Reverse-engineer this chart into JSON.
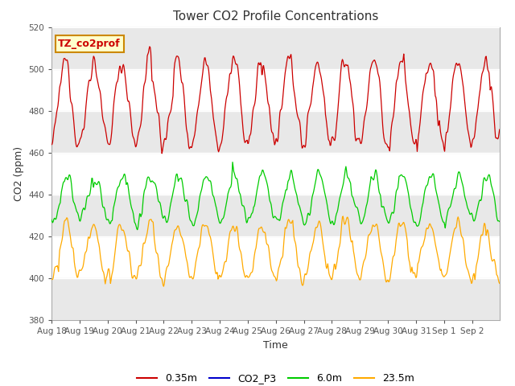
{
  "title": "Tower CO2 Profile Concentrations",
  "xlabel": "Time",
  "ylabel": "CO2 (ppm)",
  "ylim": [
    380,
    520
  ],
  "yticks": [
    380,
    400,
    420,
    440,
    460,
    480,
    500,
    520
  ],
  "annotation_text": "TZ_co2prof",
  "annotation_bg": "#ffffcc",
  "annotation_border": "#cc8800",
  "bg_color": "#ffffff",
  "plot_bg_color": "#ffffff",
  "band_color": "#e8e8e8",
  "legend_colors": {
    "0.35m": "#cc0000",
    "CO2_P3": "#0000cc",
    "6.0m": "#00cc00",
    "23.5m": "#ffaa00"
  },
  "n_days": 16,
  "x_tick_labels": [
    "Aug 18",
    "Aug 19",
    "Aug 20",
    "Aug 21",
    "Aug 22",
    "Aug 23",
    "Aug 24",
    "Aug 25",
    "Aug 26",
    "Aug 27",
    "Aug 28",
    "Aug 29",
    "Aug 30",
    "Aug 31",
    "Sep 1",
    "Sep 2"
  ]
}
